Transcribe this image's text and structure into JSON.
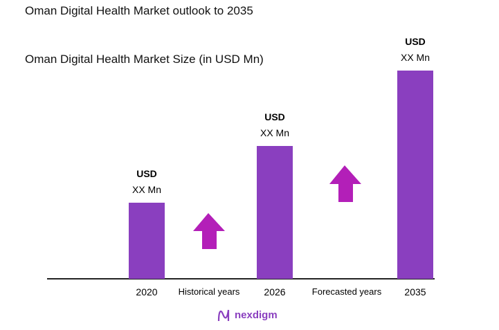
{
  "chart_data": {
    "type": "bar",
    "title": "Oman Digital Health Market outlook to 2035",
    "subtitle": "Oman Digital Health Market Size (in USD Mn)",
    "categories": [
      "2020",
      "2026",
      "2035"
    ],
    "values": [
      null,
      null,
      null
    ],
    "data_labels": [
      {
        "currency": "USD",
        "value": "XX Mn"
      },
      {
        "currency": "USD",
        "value": "XX Mn"
      },
      {
        "currency": "USD",
        "value": "XX Mn"
      }
    ],
    "period_labels": [
      "Historical years",
      "Forecasted years"
    ],
    "bar_color": "#8a3fbf",
    "arrow_color": "#b31fb8",
    "trend": "increasing",
    "grid": false,
    "legend": "none"
  },
  "logo": {
    "text": "nexdigm"
  }
}
